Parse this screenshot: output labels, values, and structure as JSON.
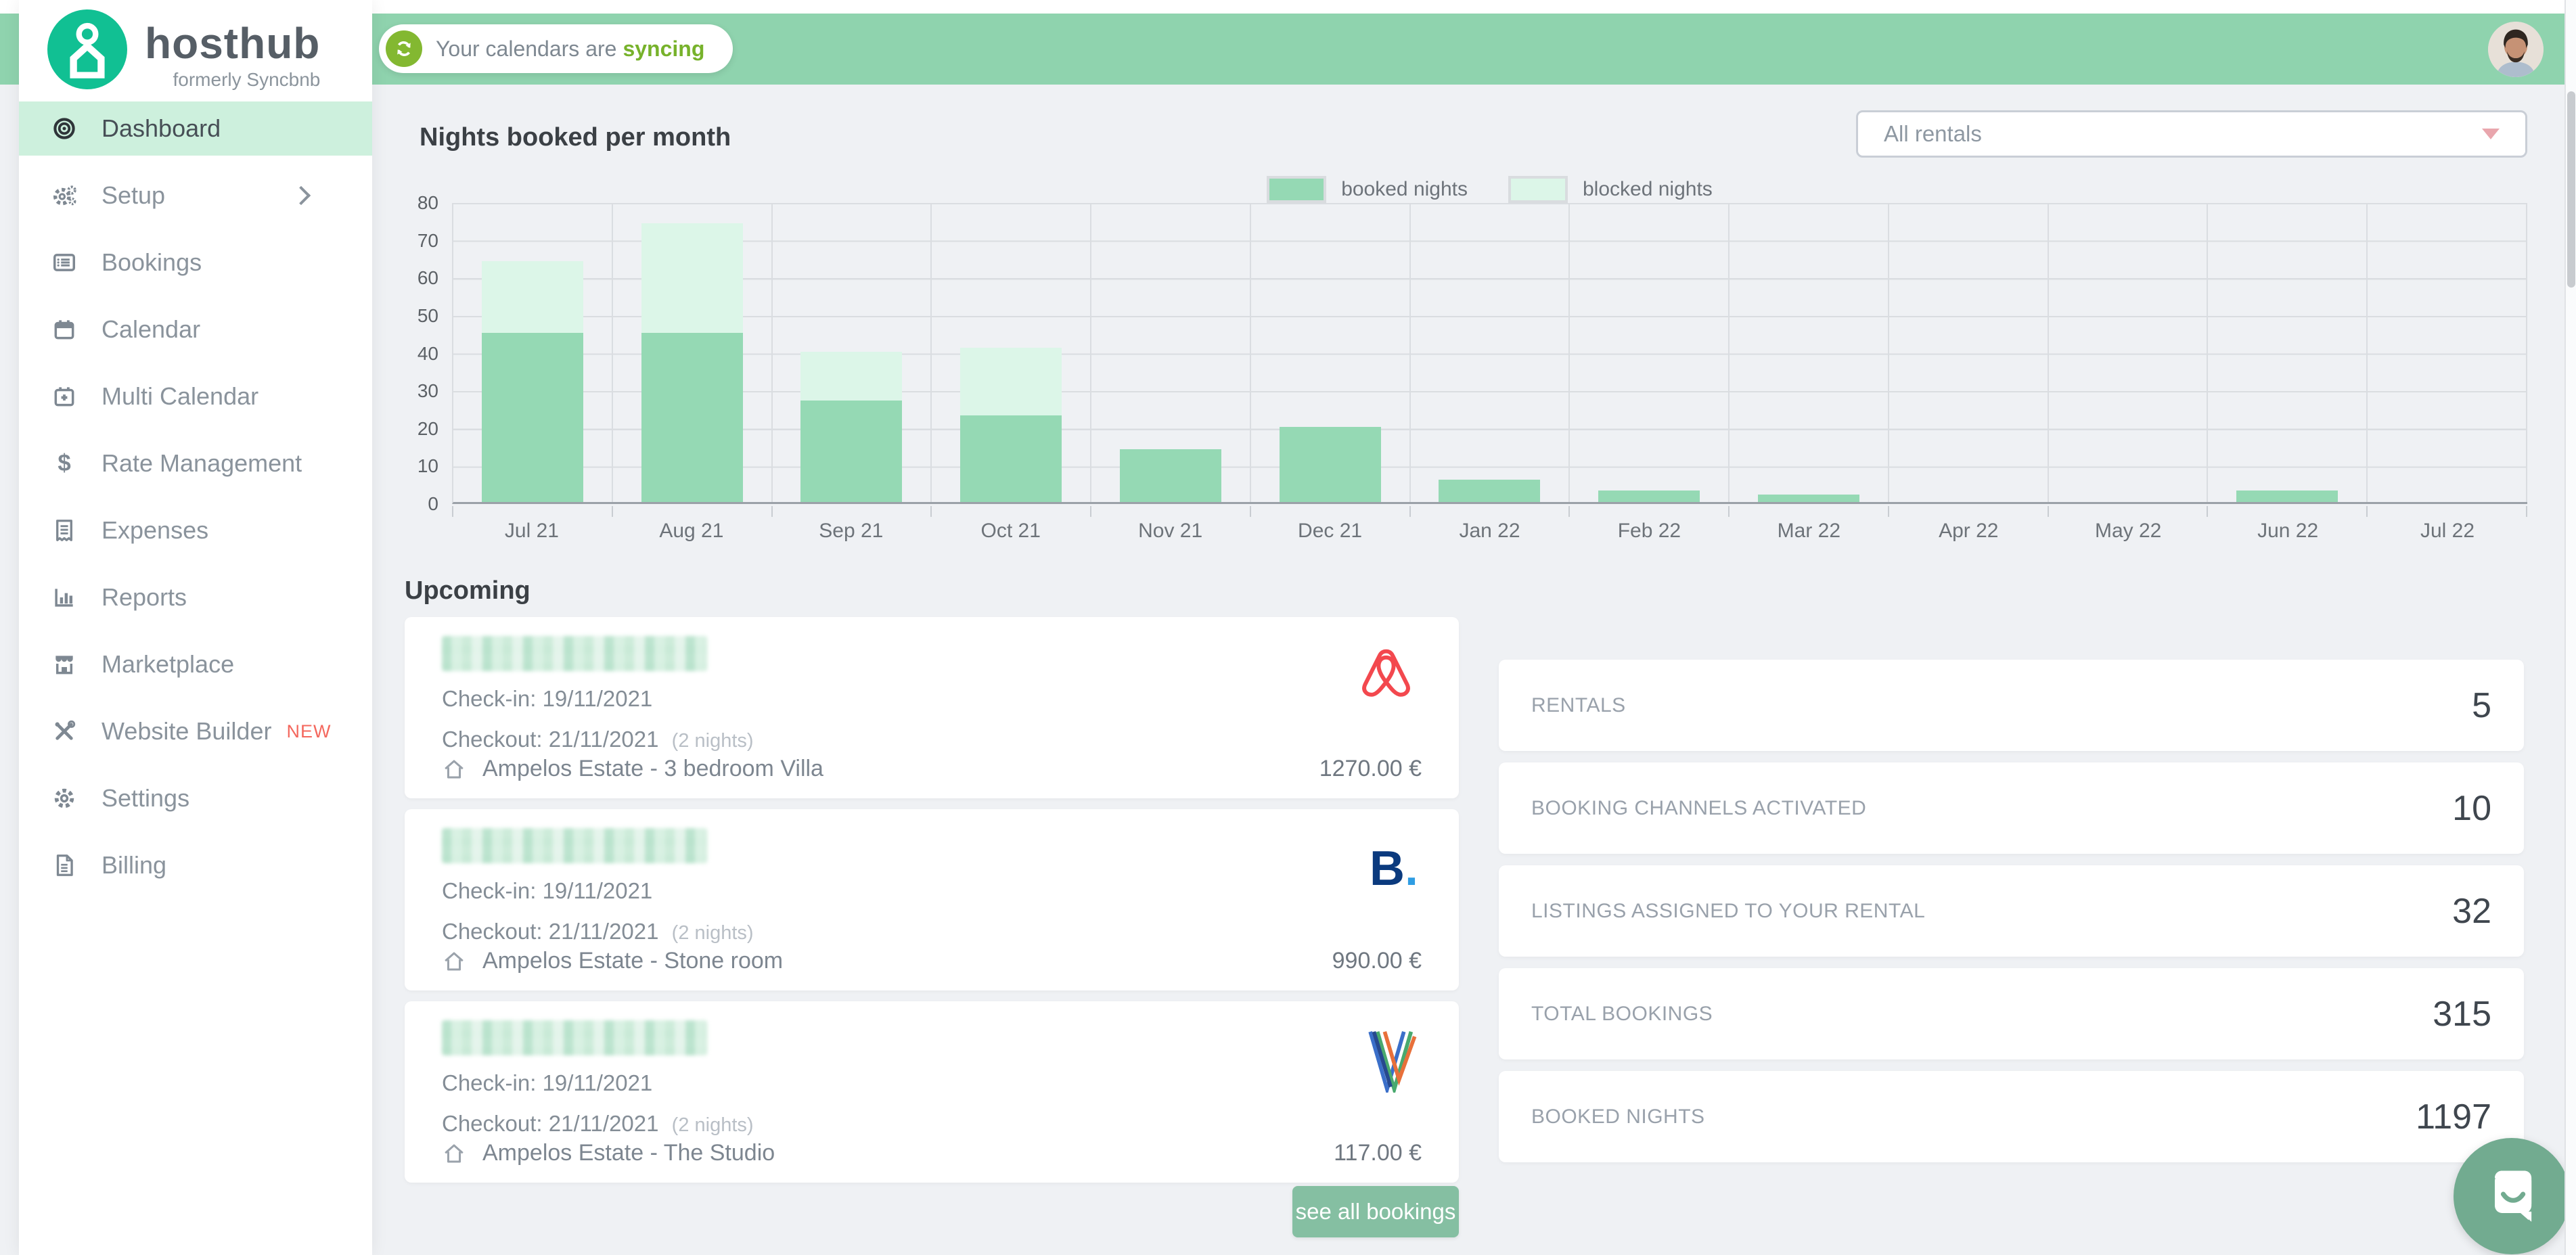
{
  "topbar": {
    "sync_text": "Your calendars are",
    "sync_highlight": "syncing"
  },
  "brand": {
    "name": "hosthub",
    "tagline": "formerly Syncbnb"
  },
  "sidebar": {
    "items": [
      {
        "label": "Dashboard",
        "active": true
      },
      {
        "label": "Setup",
        "has_submenu": true
      },
      {
        "label": "Bookings"
      },
      {
        "label": "Calendar"
      },
      {
        "label": "Multi Calendar"
      },
      {
        "label": "Rate Management"
      },
      {
        "label": "Expenses"
      },
      {
        "label": "Reports"
      },
      {
        "label": "Marketplace"
      },
      {
        "label": "Website Builder",
        "badge": "NEW"
      },
      {
        "label": "Settings"
      },
      {
        "label": "Billing"
      }
    ]
  },
  "filters": {
    "rentals_dropdown_value": "All rentals"
  },
  "chart_data": {
    "type": "bar",
    "stacked": true,
    "title": "Nights booked per month",
    "categories": [
      "Jul 21",
      "Aug 21",
      "Sep 21",
      "Oct 21",
      "Nov 21",
      "Dec 21",
      "Jan 22",
      "Feb 22",
      "Mar 22",
      "Apr 22",
      "May 22",
      "Jun 22",
      "Jul 22"
    ],
    "series": [
      {
        "name": "booked nights",
        "color": "#95d9b4",
        "values": [
          45,
          45,
          27,
          23,
          14,
          20,
          6,
          3,
          2,
          0,
          0,
          3,
          0
        ]
      },
      {
        "name": "blocked nights",
        "color": "#dcf6e8",
        "values": [
          19,
          29,
          13,
          18,
          0,
          0,
          0,
          0,
          0,
          0,
          0,
          0,
          0
        ]
      }
    ],
    "ylim": [
      0,
      80
    ],
    "ytick_step": 10,
    "grid": true,
    "legend_position": "top-center"
  },
  "upcoming": {
    "heading": "Upcoming",
    "checkin_label": "Check-in:",
    "checkout_label": "Checkout:",
    "see_all_label": "see all bookings",
    "bookings": [
      {
        "guest_name_redacted": true,
        "checkin": "19/11/2021",
        "checkout": "21/11/2021",
        "nights_note": "(2 nights)",
        "property": "Ampelos Estate - 3 bedroom Villa",
        "price": "1270.00 €",
        "channel": "airbnb"
      },
      {
        "guest_name_redacted": true,
        "checkin": "19/11/2021",
        "checkout": "21/11/2021",
        "nights_note": "(2 nights)",
        "property": "Ampelos Estate - Stone room",
        "price": "990.00 €",
        "channel": "booking"
      },
      {
        "guest_name_redacted": true,
        "checkin": "19/11/2021",
        "checkout": "21/11/2021",
        "nights_note": "(2 nights)",
        "property": "Ampelos Estate - The Studio",
        "price": "117.00 €",
        "channel": "vrbo"
      }
    ]
  },
  "stats": [
    {
      "label": "RENTALS",
      "value": "5"
    },
    {
      "label": "BOOKING CHANNELS ACTIVATED",
      "value": "10"
    },
    {
      "label": "LISTINGS ASSIGNED TO YOUR RENTAL",
      "value": "32"
    },
    {
      "label": "TOTAL BOOKINGS",
      "value": "315"
    },
    {
      "label": "BOOKED NIGHTS",
      "value": "1197"
    }
  ],
  "colors": {
    "topbar_green": "#8fd3ae",
    "brand_teal": "#11c093",
    "active_item_bg": "#cdf0dd",
    "booked_bar": "#95d9b4",
    "blocked_bar": "#dcf6e8",
    "button_green": "#85bfa2",
    "sync_icon_green": "#83b831",
    "syncing_text_green": "#77b22b",
    "new_badge_red": "#f4685e",
    "airbnb_red": "#f3484e",
    "booking_navy": "#0b3a7e",
    "booking_dot_blue": "#2f9de3",
    "chat_green": "#72ab90"
  }
}
